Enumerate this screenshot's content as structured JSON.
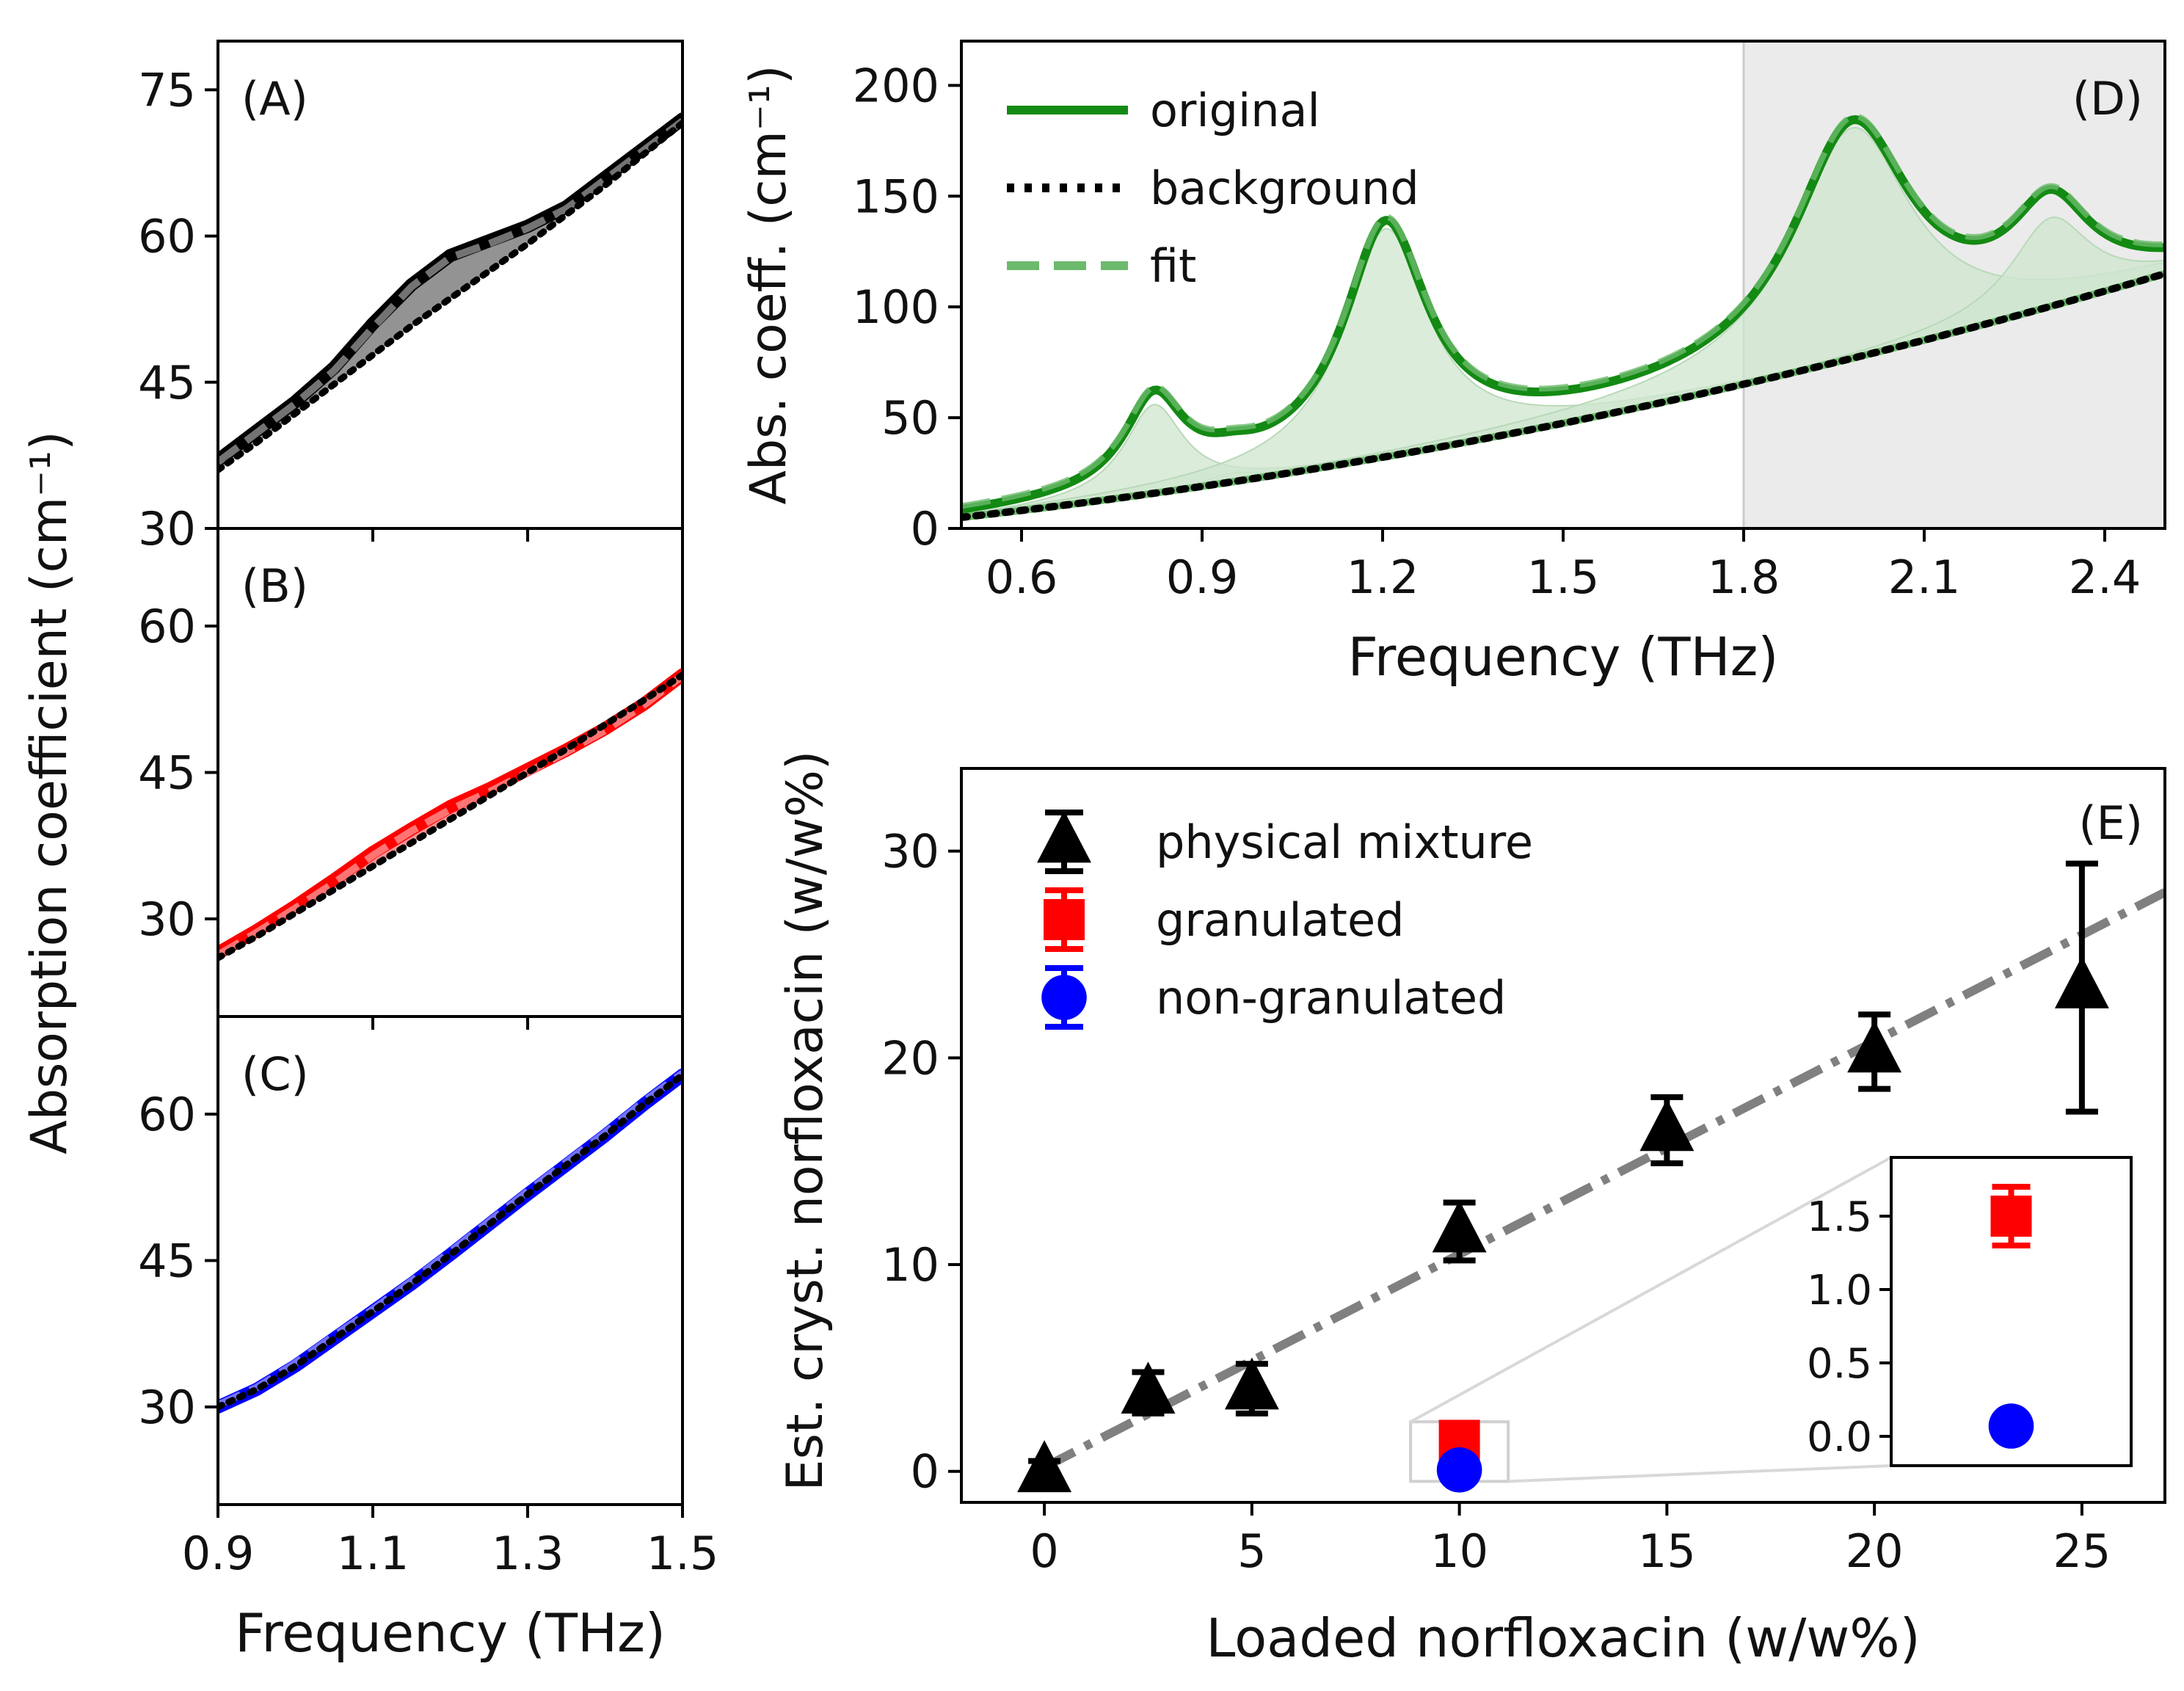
{
  "chart_data": [
    {
      "id": "A",
      "type": "line",
      "panel_label": "(A)",
      "xlabel": "",
      "ylabel": "",
      "xlim": [
        0.9,
        1.5
      ],
      "ylim": [
        30,
        80
      ],
      "xticks": [
        0.9,
        1.1,
        1.3,
        1.5
      ],
      "yticks": [
        {
          "value": 30,
          "label": "30"
        },
        {
          "value": 45,
          "label": "45"
        },
        {
          "value": 60,
          "label": "60"
        },
        {
          "value": 75,
          "label": "75"
        }
      ],
      "color": "#000000",
      "fill_color": "#808080",
      "series": [
        {
          "name": "original",
          "x": [
            0.9,
            0.95,
            1.0,
            1.05,
            1.1,
            1.15,
            1.2,
            1.25,
            1.3,
            1.35,
            1.4,
            1.45,
            1.5
          ],
          "values": [
            37,
            40,
            43,
            46.5,
            51,
            55,
            58,
            59.5,
            61,
            63,
            66,
            69,
            72
          ]
        },
        {
          "name": "background",
          "x": [
            0.9,
            0.95,
            1.0,
            1.05,
            1.1,
            1.15,
            1.2,
            1.25,
            1.3,
            1.35,
            1.4,
            1.45,
            1.5
          ],
          "values": [
            36,
            38.8,
            41.8,
            44.8,
            47.8,
            50.8,
            53.6,
            56.4,
            59.2,
            62.2,
            65.2,
            68.4,
            71.6
          ]
        },
        {
          "name": "fit",
          "x": [
            0.9,
            0.95,
            1.0,
            1.05,
            1.1,
            1.15,
            1.2,
            1.25,
            1.3,
            1.35,
            1.4,
            1.45,
            1.5
          ],
          "values": [
            36.8,
            39.8,
            42.8,
            46.2,
            50.6,
            54.8,
            57.8,
            59.2,
            60.8,
            62.8,
            65.8,
            68.8,
            71.8
          ]
        }
      ]
    },
    {
      "id": "B",
      "type": "line",
      "panel_label": "(B)",
      "xlabel": "",
      "ylabel": "",
      "xlim": [
        0.9,
        1.5
      ],
      "ylim": [
        20,
        70
      ],
      "xticks": [
        0.9,
        1.1,
        1.3,
        1.5
      ],
      "yticks": [
        {
          "value": 30,
          "label": "30"
        },
        {
          "value": 45,
          "label": "45"
        },
        {
          "value": 60,
          "label": "60"
        }
      ],
      "color": "#ff0000",
      "fill_color": "#ff8080",
      "series": [
        {
          "name": "original",
          "x": [
            0.9,
            0.95,
            1.0,
            1.05,
            1.1,
            1.15,
            1.2,
            1.25,
            1.3,
            1.35,
            1.4,
            1.45,
            1.5
          ],
          "values": [
            26.5,
            28.8,
            31.3,
            34,
            36.8,
            39.2,
            41.5,
            43.3,
            45.3,
            47.3,
            49.5,
            52,
            55
          ]
        },
        {
          "name": "background",
          "x": [
            0.9,
            0.95,
            1.0,
            1.05,
            1.1,
            1.15,
            1.2,
            1.25,
            1.3,
            1.35,
            1.4,
            1.45,
            1.5
          ],
          "values": [
            26,
            28.2,
            30.6,
            33,
            35.4,
            37.8,
            40.2,
            42.6,
            45,
            47.4,
            49.9,
            52.4,
            55
          ]
        },
        {
          "name": "fit",
          "x": [
            0.9,
            0.95,
            1.0,
            1.05,
            1.1,
            1.15,
            1.2,
            1.25,
            1.3,
            1.35,
            1.4,
            1.45,
            1.5
          ],
          "values": [
            26.3,
            28.6,
            31.1,
            33.7,
            36.5,
            39,
            41.2,
            43,
            45,
            47.1,
            49.3,
            51.9,
            54.9
          ]
        }
      ]
    },
    {
      "id": "C",
      "type": "line",
      "panel_label": "(C)",
      "xlabel": "Frequency (THz)",
      "ylabel": "",
      "xlim": [
        0.9,
        1.5
      ],
      "ylim": [
        20,
        70
      ],
      "xticks": [
        {
          "value": 0.9,
          "label": "0.9"
        },
        {
          "value": 1.1,
          "label": "1.1"
        },
        {
          "value": 1.3,
          "label": "1.3"
        },
        {
          "value": 1.5,
          "label": "1.5"
        }
      ],
      "yticks": [
        {
          "value": 30,
          "label": "30"
        },
        {
          "value": 45,
          "label": "45"
        },
        {
          "value": 60,
          "label": "60"
        }
      ],
      "color": "#0000ff",
      "fill_color": "#8080ff",
      "series": [
        {
          "name": "original",
          "x": [
            0.9,
            0.95,
            1.0,
            1.05,
            1.1,
            1.15,
            1.2,
            1.25,
            1.3,
            1.35,
            1.4,
            1.45,
            1.5
          ],
          "values": [
            30,
            31.8,
            34.2,
            37,
            39.8,
            42.6,
            45.6,
            48.7,
            51.8,
            54.8,
            57.8,
            61,
            64
          ]
        },
        {
          "name": "background",
          "x": [
            0.9,
            0.95,
            1.0,
            1.05,
            1.1,
            1.15,
            1.2,
            1.25,
            1.3,
            1.35,
            1.4,
            1.45,
            1.5
          ],
          "values": [
            30,
            31.8,
            34.2,
            37,
            39.8,
            42.6,
            45.6,
            48.7,
            51.8,
            54.8,
            57.8,
            61,
            64
          ]
        },
        {
          "name": "fit",
          "x": [
            0.9,
            0.95,
            1.0,
            1.05,
            1.1,
            1.15,
            1.2,
            1.25,
            1.3,
            1.35,
            1.4,
            1.45,
            1.5
          ],
          "values": [
            30.2,
            32,
            34.5,
            37.3,
            40,
            42.9,
            45.9,
            49,
            52.1,
            55.1,
            58.1,
            61.3,
            64.2
          ]
        }
      ]
    },
    {
      "id": "D",
      "type": "line",
      "panel_label": "(D)",
      "xlabel": "Frequency (THz)",
      "ylabel": "Abs. coeff. (cm⁻¹)",
      "xlim": [
        0.5,
        2.5
      ],
      "ylim": [
        0,
        220
      ],
      "shaded_region": [
        1.8,
        2.5
      ],
      "xticks": [
        {
          "value": 0.6,
          "label": "0.6"
        },
        {
          "value": 0.9,
          "label": "0.9"
        },
        {
          "value": 1.2,
          "label": "1.2"
        },
        {
          "value": 1.5,
          "label": "1.5"
        },
        {
          "value": 1.8,
          "label": "1.8"
        },
        {
          "value": 2.1,
          "label": "2.1"
        },
        {
          "value": 2.4,
          "label": "2.4"
        }
      ],
      "yticks": [
        {
          "value": 0,
          "label": "0"
        },
        {
          "value": 50,
          "label": "50"
        },
        {
          "value": 100,
          "label": "100"
        },
        {
          "value": 150,
          "label": "150"
        },
        {
          "value": 200,
          "label": "200"
        }
      ],
      "background_model": {
        "a": 5,
        "b": 0.58,
        "c": 25
      },
      "peaks": [
        {
          "center": 0.82,
          "amplitude": 40,
          "width": 0.06
        },
        {
          "center": 0.95,
          "amplitude": 4,
          "width": 0.05
        },
        {
          "center": 1.205,
          "amplitude": 103,
          "width": 0.085
        },
        {
          "center": 1.98,
          "amplitude": 104,
          "width": 0.12
        },
        {
          "center": 2.31,
          "amplitude": 40,
          "width": 0.08
        }
      ],
      "legend": {
        "position": "top-left",
        "entries": [
          "original",
          "background",
          "fit"
        ]
      },
      "colors": {
        "original": "#138a13",
        "fit": "#6cba6c",
        "background": "#000000",
        "peak_fill": "#cfe6cf",
        "shade": "#ebebeb"
      }
    },
    {
      "id": "E",
      "type": "scatter",
      "panel_label": "(E)",
      "xlabel": "Loaded norfloxacin (w/w%)",
      "ylabel": "Est. cryst. norfloxacin (w/w%)",
      "xlim": [
        -2,
        27
      ],
      "ylim": [
        -1.5,
        34
      ],
      "xticks": [
        {
          "value": 0,
          "label": "0"
        },
        {
          "value": 5,
          "label": "5"
        },
        {
          "value": 10,
          "label": "10"
        },
        {
          "value": 15,
          "label": "15"
        },
        {
          "value": 20,
          "label": "20"
        },
        {
          "value": 25,
          "label": "25"
        }
      ],
      "yticks": [
        {
          "value": 0,
          "label": "0"
        },
        {
          "value": 10,
          "label": "10"
        },
        {
          "value": 20,
          "label": "20"
        },
        {
          "value": 30,
          "label": "30"
        }
      ],
      "series": [
        {
          "name": "physical mixture",
          "marker": "triangle",
          "color": "#000000",
          "points": [
            {
              "x": 0,
              "y": 0,
              "err": 0.5
            },
            {
              "x": 2.5,
              "y": 3.8,
              "err": 1.0
            },
            {
              "x": 5,
              "y": 4.0,
              "err": 1.2
            },
            {
              "x": 10,
              "y": 11.6,
              "err": 1.4
            },
            {
              "x": 15,
              "y": 16.5,
              "err": 1.6
            },
            {
              "x": 20,
              "y": 20.3,
              "err": 1.8
            },
            {
              "x": 25,
              "y": 23.4,
              "err": 6.0
            }
          ]
        },
        {
          "name": "granulated",
          "marker": "square",
          "color": "#ff0000",
          "points": [
            {
              "x": 10,
              "y": 1.5,
              "err": 0.2
            }
          ]
        },
        {
          "name": "non-granulated",
          "marker": "circle",
          "color": "#0000ff",
          "points": [
            {
              "x": 10,
              "y": 0.07,
              "err": 0.05
            }
          ]
        }
      ],
      "fit_line": {
        "slope": 1.03,
        "intercept": 0.2,
        "x": [
          0,
          27
        ],
        "style": "dash-dot",
        "color": "#808080"
      },
      "legend": {
        "position": "top-left",
        "entries": [
          "physical mixture",
          "granulated",
          "non-granulated"
        ]
      },
      "inset": {
        "xlim": [
          9,
          11
        ],
        "ylim": [
          -0.2,
          1.9
        ],
        "yticks": [
          {
            "value": 0.0,
            "label": "0.0"
          },
          {
            "value": 0.5,
            "label": "0.5"
          },
          {
            "value": 1.0,
            "label": "1.0"
          },
          {
            "value": 1.5,
            "label": "1.5"
          }
        ],
        "zoom_box": {
          "x": [
            9,
            11
          ],
          "y": [
            -0.2,
            1.9
          ]
        }
      }
    }
  ],
  "shared": {
    "ylabel_left": "Absorption coefficient (cm⁻¹)"
  }
}
